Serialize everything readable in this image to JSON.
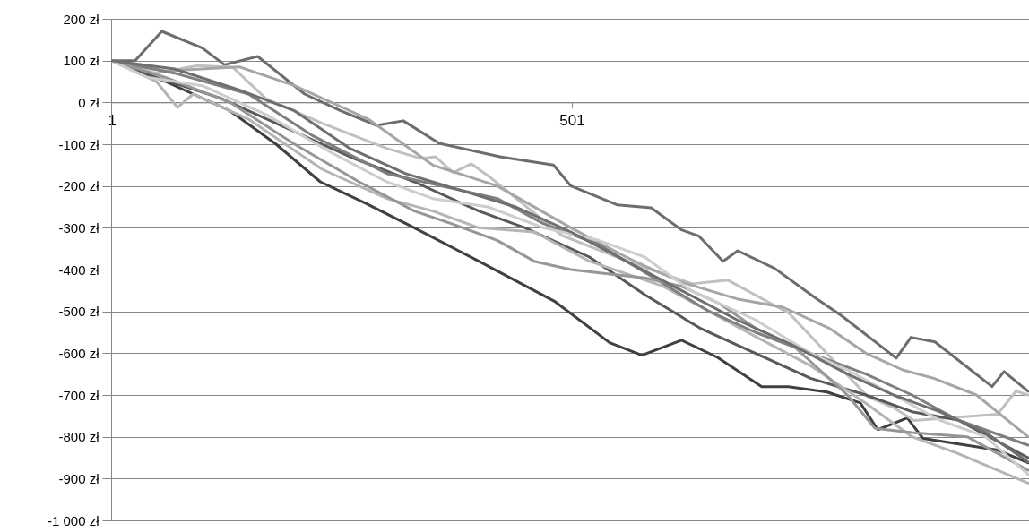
{
  "chart_data": {
    "type": "line",
    "xlim": [
      1,
      1000
    ],
    "xticks": [
      1,
      501
    ],
    "ylim": [
      -1000,
      200
    ],
    "yticks": [
      {
        "value": 200,
        "label": "200 zł"
      },
      {
        "value": 100,
        "label": "100 zł"
      },
      {
        "value": 0,
        "label": "0 zł"
      },
      {
        "value": -100,
        "label": "-100 zł"
      },
      {
        "value": -200,
        "label": "-200 zł"
      },
      {
        "value": -300,
        "label": "-300 zł"
      },
      {
        "value": -400,
        "label": "-400 zł"
      },
      {
        "value": -500,
        "label": "-500 zł"
      },
      {
        "value": -600,
        "label": "-600 zł"
      },
      {
        "value": -700,
        "label": "-700 zł"
      },
      {
        "value": -800,
        "label": "-800 zł"
      },
      {
        "value": -900,
        "label": "-900 zł"
      },
      {
        "value": -1000,
        "label": "-1 000 zł"
      }
    ],
    "grid": "y",
    "legend": false,
    "series": [
      {
        "color": "#6d6d6d",
        "x": [
          1,
          27,
          56,
          100,
          124,
          160,
          211,
          250,
          289,
          318,
          357,
          423,
          481,
          500,
          550,
          587,
          620,
          639,
          665,
          681,
          721,
          764,
          794,
          853,
          869,
          895,
          957,
          970,
          996
        ],
        "values": [
          100,
          100,
          170,
          130,
          90,
          110,
          20,
          -20,
          -55,
          -44,
          -98,
          -130,
          -150,
          -200,
          -245,
          -252,
          -305,
          -320,
          -380,
          -355,
          -397,
          -466,
          -511,
          -612,
          -562,
          -573,
          -680,
          -644,
          -691
        ]
      },
      {
        "color": "#404040",
        "x": [
          1,
          60,
          130,
          180,
          228,
          277,
          330,
          400,
          483,
          542,
          577,
          620,
          659,
          707,
          736,
          778,
          814,
          833,
          865,
          882,
          963,
          996
        ],
        "values": [
          100,
          50,
          -20,
          -100,
          -190,
          -241,
          -300,
          -380,
          -477,
          -575,
          -605,
          -569,
          -610,
          -680,
          -680,
          -693,
          -719,
          -783,
          -755,
          -804,
          -832,
          -862
        ]
      },
      {
        "color": "#c0c0c0",
        "x": [
          1,
          50,
          95,
          133,
          169,
          230,
          300,
          337,
          353,
          372,
          392,
          411,
          490,
          574,
          632,
          670,
          737,
          822,
          850,
          872,
          963,
          983,
          996
        ],
        "values": [
          100,
          70,
          88,
          84,
          9,
          -50,
          -110,
          -134,
          -130,
          -168,
          -147,
          -177,
          -318,
          -391,
          -434,
          -425,
          -505,
          -704,
          -730,
          -761,
          -746,
          -691,
          -700
        ]
      },
      {
        "color": "#a6a6a6",
        "x": [
          1,
          60,
          140,
          200,
          280,
          350,
          420,
          500,
          560,
          580,
          620,
          680,
          730,
          780,
          820,
          860,
          895,
          940,
          996
        ],
        "values": [
          100,
          75,
          85,
          40,
          -40,
          -150,
          -200,
          -300,
          -370,
          -391,
          -430,
          -470,
          -490,
          -540,
          -600,
          -640,
          -661,
          -700,
          -800
        ]
      },
      {
        "color": "#595959",
        "x": [
          1,
          50,
          120,
          180,
          260,
          330,
          400,
          450,
          520,
          580,
          640,
          700,
          760,
          820,
          870,
          920,
          996
        ],
        "values": [
          100,
          60,
          10,
          -50,
          -130,
          -190,
          -260,
          -300,
          -370,
          -460,
          -540,
          -600,
          -660,
          -700,
          -740,
          -760,
          -850
        ]
      },
      {
        "color": "#b5b5b5",
        "x": [
          1,
          50,
          73,
          90,
          150,
          230,
          300,
          350,
          400,
          460,
          520,
          600,
          650,
          700,
          760,
          820,
          870,
          920,
          996
        ],
        "values": [
          100,
          50,
          -12,
          20,
          -40,
          -160,
          -230,
          -260,
          -300,
          -310,
          -380,
          -440,
          -500,
          -560,
          -630,
          -720,
          -800,
          -840,
          -911
        ]
      },
      {
        "color": "#7f7f7f",
        "x": [
          1,
          70,
          150,
          220,
          300,
          360,
          420,
          470,
          530,
          590,
          650,
          700,
          760,
          820,
          870,
          920,
          996
        ],
        "values": [
          100,
          70,
          20,
          -80,
          -170,
          -200,
          -230,
          -290,
          -340,
          -420,
          -500,
          -550,
          -600,
          -650,
          -700,
          -760,
          -820
        ]
      },
      {
        "color": "#969696",
        "x": [
          1,
          60,
          130,
          200,
          270,
          330,
          370,
          420,
          460,
          500,
          540,
          580,
          620,
          660,
          700,
          740,
          800,
          830,
          870,
          930,
          996
        ],
        "values": [
          100,
          60,
          0,
          -100,
          -190,
          -260,
          -290,
          -330,
          -380,
          -400,
          -410,
          -420,
          -440,
          -480,
          -540,
          -580,
          -700,
          -780,
          -790,
          -800,
          -880
        ]
      },
      {
        "color": "#cdcdcd",
        "x": [
          1,
          40,
          100,
          170,
          240,
          300,
          350,
          410,
          470,
          530,
          580,
          630,
          700,
          760,
          800,
          850,
          900,
          950,
          996
        ],
        "values": [
          100,
          60,
          40,
          -30,
          -120,
          -190,
          -230,
          -250,
          -300,
          -330,
          -370,
          -450,
          -520,
          -600,
          -640,
          -700,
          -760,
          -800,
          -890
        ]
      },
      {
        "color": "#6f6f6f",
        "x": [
          1,
          70,
          140,
          200,
          260,
          320,
          380,
          440,
          500,
          560,
          620,
          680,
          740,
          800,
          850,
          900,
          950,
          996
        ],
        "values": [
          100,
          80,
          30,
          -20,
          -110,
          -170,
          -210,
          -250,
          -310,
          -380,
          -450,
          -520,
          -580,
          -650,
          -700,
          -740,
          -790,
          -860
        ]
      }
    ]
  }
}
